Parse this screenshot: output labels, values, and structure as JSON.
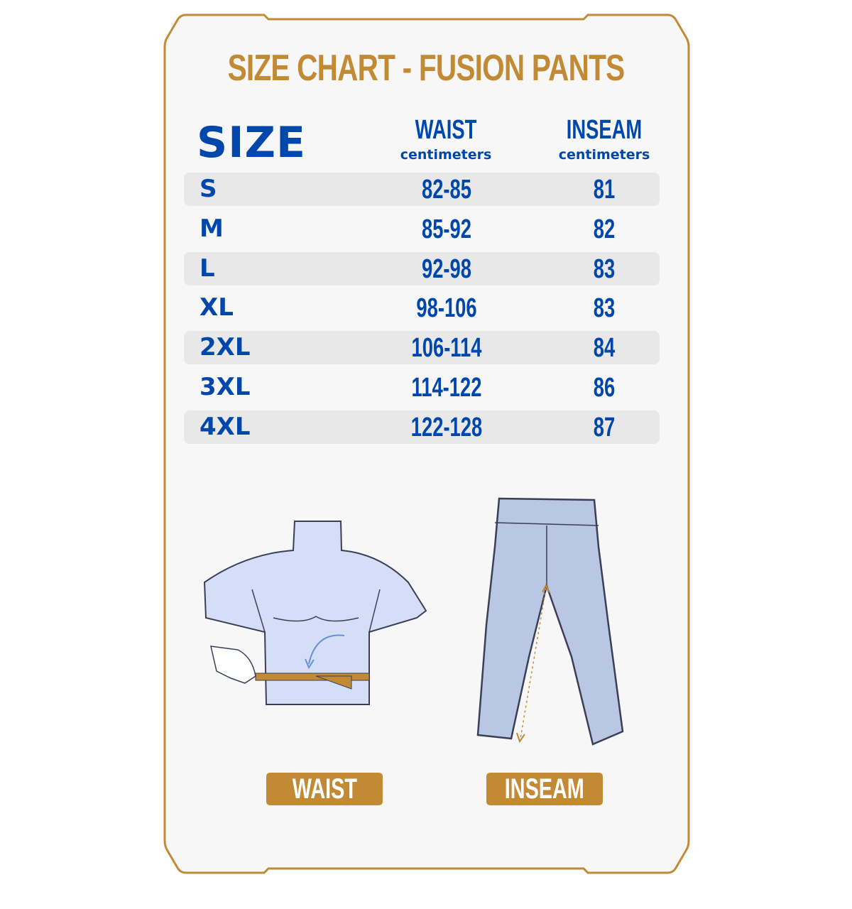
{
  "title": "SIZE CHART - FUSION PANTS",
  "colors": {
    "accent": "#C38A35",
    "text": "#0047AB",
    "background": "#F7F7F7",
    "row_shade": "#E8E8E8"
  },
  "table": {
    "headers": {
      "size": "SIZE",
      "waist": {
        "label": "WAIST",
        "unit": "centimeters"
      },
      "inseam": {
        "label": "INSEAM",
        "unit": "centimeters"
      }
    },
    "rows": [
      {
        "size": "S",
        "waist": "82-85",
        "inseam": "81"
      },
      {
        "size": "M",
        "waist": "85-92",
        "inseam": "82"
      },
      {
        "size": "L",
        "waist": "92-98",
        "inseam": "83"
      },
      {
        "size": "XL",
        "waist": "98-106",
        "inseam": "83"
      },
      {
        "size": "2XL",
        "waist": "106-114",
        "inseam": "84"
      },
      {
        "size": "3XL",
        "waist": "114-122",
        "inseam": "86"
      },
      {
        "size": "4XL",
        "waist": "122-128",
        "inseam": "87"
      }
    ]
  },
  "illustrations": {
    "waist_label": "WAIST",
    "inseam_label": "INSEAM"
  }
}
